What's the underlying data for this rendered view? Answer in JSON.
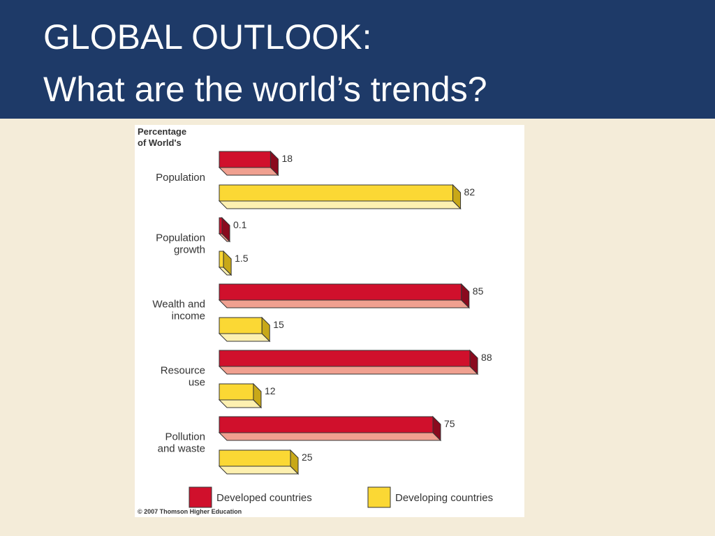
{
  "slide": {
    "title_line1": "GLOBAL OUTLOOK:",
    "title_line2": "What are the world’s trends?"
  },
  "chart_data": {
    "type": "bar",
    "orientation": "horizontal",
    "ylabel_line1": "Percentage",
    "ylabel_line2": "of World's",
    "categories": [
      [
        "Population"
      ],
      [
        "Population",
        "growth"
      ],
      [
        "Wealth and",
        "income"
      ],
      [
        "Resource",
        "use"
      ],
      [
        "Pollution",
        "and waste"
      ]
    ],
    "series": [
      {
        "name": "Developed countries",
        "values": [
          18,
          0.1,
          85,
          88,
          75
        ],
        "labels": [
          "18",
          "0.1",
          "85",
          "88",
          "75"
        ],
        "color": "#d0102c",
        "light": "#f0a090",
        "dark": "#8a0a1e"
      },
      {
        "name": "Developing countries",
        "values": [
          82,
          1.5,
          15,
          12,
          25
        ],
        "labels": [
          "82",
          "1.5",
          "15",
          "12",
          "25"
        ],
        "color": "#fbd834",
        "light": "#fdf0b0",
        "dark": "#c8a818"
      }
    ],
    "legend_position": "bottom",
    "credit": "© 2007 Thomson Higher Education"
  }
}
